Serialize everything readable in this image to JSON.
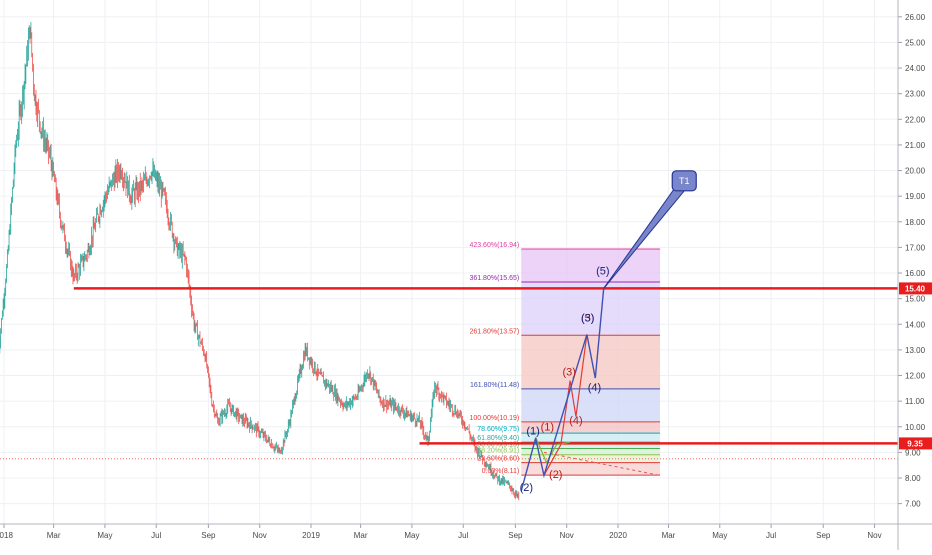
{
  "chart_data": {
    "type": "candlestick",
    "title": "",
    "xlabel": "",
    "ylabel": "",
    "ylim": [
      6.4,
      26.5
    ],
    "y_ticks": [
      "26.00",
      "25.00",
      "24.00",
      "23.00",
      "22.00",
      "21.00",
      "20.00",
      "19.00",
      "18.00",
      "17.00",
      "16.00",
      "15.00",
      "14.00",
      "13.00",
      "12.00",
      "11.00",
      "10.00",
      "9.00",
      "8.00",
      "7.00"
    ],
    "x_ticks": [
      {
        "label": "2018",
        "date": "2018-01"
      },
      {
        "label": "Mar",
        "date": "2018-03"
      },
      {
        "label": "May",
        "date": "2018-05"
      },
      {
        "label": "Jul",
        "date": "2018-07"
      },
      {
        "label": "Sep",
        "date": "2018-09"
      },
      {
        "label": "Nov",
        "date": "2018-11"
      },
      {
        "label": "2019",
        "date": "2019-01"
      },
      {
        "label": "Mar",
        "date": "2019-03"
      },
      {
        "label": "May",
        "date": "2019-05"
      },
      {
        "label": "Jul",
        "date": "2019-07"
      },
      {
        "label": "Sep",
        "date": "2019-09"
      },
      {
        "label": "Nov",
        "date": "2019-11"
      },
      {
        "label": "2020",
        "date": "2020-01"
      },
      {
        "label": "Mar",
        "date": "2020-03"
      },
      {
        "label": "May",
        "date": "2020-05"
      },
      {
        "label": "Jul",
        "date": "2020-07"
      },
      {
        "label": "Sep",
        "date": "2020-09"
      },
      {
        "label": "Nov",
        "date": "2020-11"
      }
    ],
    "price_path": [
      [
        "2017-12-25",
        12.8
      ],
      [
        "2018-01-05",
        16.5
      ],
      [
        "2018-01-15",
        21.0
      ],
      [
        "2018-01-25",
        23.5
      ],
      [
        "2018-02-01",
        25.6
      ],
      [
        "2018-02-06",
        23.0
      ],
      [
        "2018-02-15",
        21.5
      ],
      [
        "2018-02-25",
        20.5
      ],
      [
        "2018-03-10",
        18.0
      ],
      [
        "2018-03-25",
        15.8
      ],
      [
        "2018-04-10",
        16.8
      ],
      [
        "2018-04-25",
        18.5
      ],
      [
        "2018-05-10",
        19.6
      ],
      [
        "2018-05-20",
        20.1
      ],
      [
        "2018-06-01",
        19.0
      ],
      [
        "2018-06-15",
        19.4
      ],
      [
        "2018-06-25",
        20.0
      ],
      [
        "2018-07-10",
        19.0
      ],
      [
        "2018-07-25",
        17.0
      ],
      [
        "2018-08-05",
        16.5
      ],
      [
        "2018-08-15",
        14.0
      ],
      [
        "2018-08-28",
        12.8
      ],
      [
        "2018-09-05",
        11.0
      ],
      [
        "2018-09-12",
        10.2
      ],
      [
        "2018-09-25",
        10.8
      ],
      [
        "2018-10-10",
        10.3
      ],
      [
        "2018-10-25",
        10.0
      ],
      [
        "2018-11-10",
        9.5
      ],
      [
        "2018-11-25",
        9.0
      ],
      [
        "2018-12-05",
        10.0
      ],
      [
        "2018-12-15",
        11.5
      ],
      [
        "2018-12-25",
        13.0
      ],
      [
        "2019-01-10",
        12.0
      ],
      [
        "2019-01-25",
        11.5
      ],
      [
        "2019-02-10",
        10.8
      ],
      [
        "2019-02-25",
        11.2
      ],
      [
        "2019-03-10",
        12.2
      ],
      [
        "2019-03-25",
        11.0
      ],
      [
        "2019-04-10",
        10.8
      ],
      [
        "2019-04-25",
        10.5
      ],
      [
        "2019-05-10",
        10.2
      ],
      [
        "2019-05-20",
        9.4
      ],
      [
        "2019-05-28",
        11.6
      ],
      [
        "2019-06-10",
        11.0
      ],
      [
        "2019-06-25",
        10.5
      ],
      [
        "2019-07-05",
        10.0
      ],
      [
        "2019-07-15",
        9.2
      ],
      [
        "2019-07-28",
        8.6
      ],
      [
        "2019-08-10",
        8.0
      ],
      [
        "2019-08-25",
        7.7
      ],
      [
        "2019-09-05",
        7.2
      ]
    ],
    "horizontal_levels": [
      {
        "price": 15.4,
        "label": "15.40",
        "start": "2018-03-25",
        "color": "#e91d1d"
      },
      {
        "price": 9.35,
        "label": "9.35",
        "start": "2019-05-10",
        "color": "#e91d1d"
      }
    ],
    "current_price_line": {
      "price": 8.75,
      "color": "#ef5350"
    },
    "fibonacci": {
      "start": "2019-09-08",
      "end": "2020-02-20",
      "levels": [
        {
          "label": "423.60%(16.94)",
          "price": 16.94,
          "color": "#e040a0",
          "fill": "#f8c8e8"
        },
        {
          "label": "361.80%(15.65)",
          "price": 15.65,
          "color": "#9c27b0",
          "fill": "#e6c4f4"
        },
        {
          "label": "261.80%(13.57)",
          "price": 13.57,
          "color": "#e53935",
          "fill": "#dcd0fa"
        },
        {
          "label": "161.80%(11.48)",
          "price": 11.48,
          "color": "#3f51b5",
          "fill": "#f6c6c2"
        },
        {
          "label": "100.00%(10.19)",
          "price": 10.19,
          "color": "#e53935",
          "fill": "#cfd6f7"
        },
        {
          "label": "78.60%(9.75)",
          "price": 9.75,
          "color": "#00acc1",
          "fill": "#f2c2c2"
        },
        {
          "label": "61.80%(9.40)",
          "price": 9.4,
          "color": "#26a69a",
          "fill": "#c8ecf2"
        },
        {
          "label": "50.00%(9.15)",
          "price": 9.15,
          "color": "#4caf50",
          "fill": "#cdebe7"
        },
        {
          "label": "38.20%(8.91)",
          "price": 8.91,
          "color": "#8bc34a",
          "fill": "#d6efd6"
        },
        {
          "label": "23.60%(8.60)",
          "price": 8.6,
          "color": "#e53935",
          "fill": "#e2f0cf"
        },
        {
          "label": "0.00%(8.11)",
          "price": 8.11,
          "color": "#e53935",
          "fill": "#f6cfcf"
        }
      ]
    },
    "wave_blue": [
      [
        "2019-09-08",
        7.5
      ],
      [
        "2019-09-25",
        9.55
      ],
      [
        "2019-10-05",
        8.1
      ],
      [
        "2019-11-25",
        13.6
      ],
      [
        "2019-12-05",
        11.9
      ],
      [
        "2019-12-15",
        15.4
      ],
      [
        "2020-03-15",
        19.3
      ]
    ],
    "wave_red": [
      [
        "2019-10-05",
        8.1
      ],
      [
        "2019-10-25",
        9.3
      ],
      [
        "2019-11-05",
        11.8
      ],
      [
        "2019-11-12",
        10.4
      ],
      [
        "2019-11-25",
        13.6
      ]
    ],
    "wave_green": [
      [
        "2019-09-25",
        9.6
      ],
      [
        "2019-10-08",
        8.6
      ],
      [
        "2019-10-20",
        9.3
      ],
      [
        "2019-11-05",
        9.4
      ]
    ],
    "projection_dashed": [
      [
        "2019-10-05",
        9.0
      ],
      [
        "2020-02-20",
        8.1
      ]
    ],
    "wave_labels": [
      {
        "text": "(1)",
        "date": "2019-09-22",
        "price": 9.7,
        "color": "#1a237e"
      },
      {
        "text": "(2)",
        "date": "2019-09-14",
        "price": 7.5,
        "color": "#1a237e"
      },
      {
        "text": "(1)",
        "date": "2019-10-09",
        "price": 9.85,
        "color": "#b71c1c"
      },
      {
        "text": "(2)",
        "date": "2019-10-19",
        "price": 8.0,
        "color": "#b71c1c"
      },
      {
        "text": "(3)",
        "date": "2019-11-04",
        "price": 12.0,
        "color": "#b71c1c"
      },
      {
        "text": "(4)",
        "date": "2019-11-12",
        "price": 10.1,
        "color": "#b71c1c"
      },
      {
        "text": "(5)",
        "date": "2019-11-26",
        "price": 14.1,
        "color": "#b71c1c"
      },
      {
        "text": "(3)",
        "date": "2019-11-26",
        "price": 14.1,
        "color": "#1a237e"
      },
      {
        "text": "(4)",
        "date": "2019-12-04",
        "price": 11.4,
        "color": "#1a237e"
      },
      {
        "text": "(5)",
        "date": "2019-12-14",
        "price": 15.95,
        "color": "#1a237e"
      }
    ],
    "callout": {
      "text": "T1",
      "date": "2020-03-15",
      "price": 19.6
    },
    "grid": true,
    "axis_position": "right"
  }
}
